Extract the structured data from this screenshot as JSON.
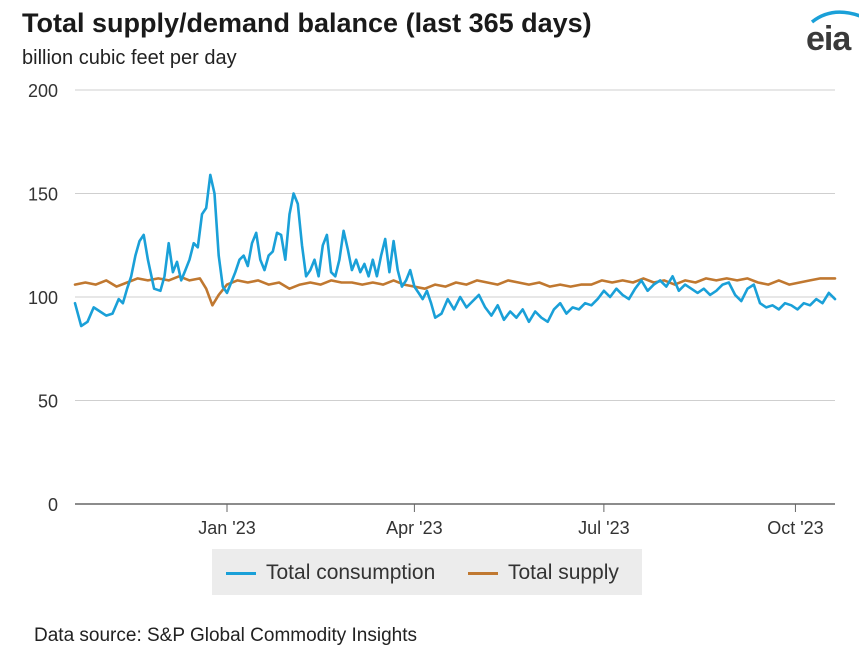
{
  "header": {
    "title": "Total supply/demand balance (last 365 days)",
    "subtitle": "billion cubic feet per day",
    "logo_text": "eia"
  },
  "footer": {
    "source": "Data source: S&P Global Commodity Insights"
  },
  "colors": {
    "consumption": "#1aa0d8",
    "supply": "#c07830",
    "grid": "#cfcfcf",
    "axis": "#666666"
  },
  "chart_data": {
    "type": "line",
    "title": "Total supply/demand balance (last 365 days)",
    "ylabel": "billion cubic feet per day",
    "ylim": [
      0,
      200
    ],
    "yticks": [
      0,
      50,
      100,
      150,
      200
    ],
    "xlim": [
      "2022-10-20",
      "2023-10-20"
    ],
    "xticks": [
      {
        "date": "2023-01-01",
        "label": "Jan '23"
      },
      {
        "date": "2023-04-01",
        "label": "Apr '23"
      },
      {
        "date": "2023-07-01",
        "label": "Jul '23"
      },
      {
        "date": "2023-10-01",
        "label": "Oct '23"
      }
    ],
    "grid": true,
    "legend": "bottom",
    "series": [
      {
        "name": "Total consumption",
        "points": [
          [
            "2022-10-20",
            97
          ],
          [
            "2022-10-23",
            86
          ],
          [
            "2022-10-26",
            88
          ],
          [
            "2022-10-29",
            95
          ],
          [
            "2022-11-01",
            93
          ],
          [
            "2022-11-04",
            91
          ],
          [
            "2022-11-07",
            92
          ],
          [
            "2022-11-10",
            99
          ],
          [
            "2022-11-12",
            97
          ],
          [
            "2022-11-14",
            104
          ],
          [
            "2022-11-16",
            110
          ],
          [
            "2022-11-18",
            120
          ],
          [
            "2022-11-20",
            127
          ],
          [
            "2022-11-22",
            130
          ],
          [
            "2022-11-24",
            118
          ],
          [
            "2022-11-27",
            104
          ],
          [
            "2022-11-30",
            103
          ],
          [
            "2022-12-02",
            110
          ],
          [
            "2022-12-04",
            126
          ],
          [
            "2022-12-06",
            112
          ],
          [
            "2022-12-08",
            117
          ],
          [
            "2022-12-10",
            108
          ],
          [
            "2022-12-12",
            113
          ],
          [
            "2022-12-14",
            118
          ],
          [
            "2022-12-16",
            126
          ],
          [
            "2022-12-18",
            124
          ],
          [
            "2022-12-20",
            140
          ],
          [
            "2022-12-22",
            143
          ],
          [
            "2022-12-24",
            159
          ],
          [
            "2022-12-26",
            150
          ],
          [
            "2022-12-28",
            120
          ],
          [
            "2022-12-30",
            105
          ],
          [
            "2023-01-01",
            102
          ],
          [
            "2023-01-03",
            107
          ],
          [
            "2023-01-05",
            112
          ],
          [
            "2023-01-07",
            118
          ],
          [
            "2023-01-09",
            120
          ],
          [
            "2023-01-11",
            115
          ],
          [
            "2023-01-13",
            126
          ],
          [
            "2023-01-15",
            131
          ],
          [
            "2023-01-17",
            118
          ],
          [
            "2023-01-19",
            113
          ],
          [
            "2023-01-21",
            120
          ],
          [
            "2023-01-23",
            122
          ],
          [
            "2023-01-25",
            131
          ],
          [
            "2023-01-27",
            130
          ],
          [
            "2023-01-29",
            118
          ],
          [
            "2023-01-31",
            140
          ],
          [
            "2023-02-02",
            150
          ],
          [
            "2023-02-04",
            145
          ],
          [
            "2023-02-06",
            125
          ],
          [
            "2023-02-08",
            110
          ],
          [
            "2023-02-10",
            113
          ],
          [
            "2023-02-12",
            118
          ],
          [
            "2023-02-14",
            110
          ],
          [
            "2023-02-16",
            125
          ],
          [
            "2023-02-18",
            130
          ],
          [
            "2023-02-20",
            112
          ],
          [
            "2023-02-22",
            110
          ],
          [
            "2023-02-24",
            118
          ],
          [
            "2023-02-26",
            132
          ],
          [
            "2023-02-28",
            123
          ],
          [
            "2023-03-02",
            113
          ],
          [
            "2023-03-04",
            118
          ],
          [
            "2023-03-06",
            112
          ],
          [
            "2023-03-08",
            116
          ],
          [
            "2023-03-10",
            110
          ],
          [
            "2023-03-12",
            118
          ],
          [
            "2023-03-14",
            110
          ],
          [
            "2023-03-16",
            120
          ],
          [
            "2023-03-18",
            128
          ],
          [
            "2023-03-20",
            112
          ],
          [
            "2023-03-22",
            127
          ],
          [
            "2023-03-24",
            113
          ],
          [
            "2023-03-26",
            105
          ],
          [
            "2023-03-28",
            108
          ],
          [
            "2023-03-30",
            113
          ],
          [
            "2023-04-01",
            105
          ],
          [
            "2023-04-03",
            102
          ],
          [
            "2023-04-05",
            99
          ],
          [
            "2023-04-07",
            103
          ],
          [
            "2023-04-09",
            97
          ],
          [
            "2023-04-11",
            90
          ],
          [
            "2023-04-14",
            92
          ],
          [
            "2023-04-17",
            99
          ],
          [
            "2023-04-20",
            94
          ],
          [
            "2023-04-23",
            100
          ],
          [
            "2023-04-26",
            95
          ],
          [
            "2023-04-29",
            98
          ],
          [
            "2023-05-02",
            101
          ],
          [
            "2023-05-05",
            95
          ],
          [
            "2023-05-08",
            91
          ],
          [
            "2023-05-11",
            96
          ],
          [
            "2023-05-14",
            89
          ],
          [
            "2023-05-17",
            93
          ],
          [
            "2023-05-20",
            90
          ],
          [
            "2023-05-23",
            94
          ],
          [
            "2023-05-26",
            88
          ],
          [
            "2023-05-29",
            93
          ],
          [
            "2023-06-01",
            90
          ],
          [
            "2023-06-04",
            88
          ],
          [
            "2023-06-07",
            94
          ],
          [
            "2023-06-10",
            97
          ],
          [
            "2023-06-13",
            92
          ],
          [
            "2023-06-16",
            95
          ],
          [
            "2023-06-19",
            94
          ],
          [
            "2023-06-22",
            97
          ],
          [
            "2023-06-25",
            96
          ],
          [
            "2023-06-28",
            99
          ],
          [
            "2023-07-01",
            103
          ],
          [
            "2023-07-04",
            100
          ],
          [
            "2023-07-07",
            104
          ],
          [
            "2023-07-10",
            101
          ],
          [
            "2023-07-13",
            99
          ],
          [
            "2023-07-16",
            104
          ],
          [
            "2023-07-19",
            108
          ],
          [
            "2023-07-22",
            103
          ],
          [
            "2023-07-25",
            106
          ],
          [
            "2023-07-28",
            108
          ],
          [
            "2023-07-31",
            105
          ],
          [
            "2023-08-03",
            110
          ],
          [
            "2023-08-06",
            103
          ],
          [
            "2023-08-09",
            106
          ],
          [
            "2023-08-12",
            104
          ],
          [
            "2023-08-15",
            102
          ],
          [
            "2023-08-18",
            104
          ],
          [
            "2023-08-21",
            101
          ],
          [
            "2023-08-24",
            103
          ],
          [
            "2023-08-27",
            106
          ],
          [
            "2023-08-30",
            107
          ],
          [
            "2023-09-02",
            101
          ],
          [
            "2023-09-05",
            98
          ],
          [
            "2023-09-08",
            104
          ],
          [
            "2023-09-11",
            106
          ],
          [
            "2023-09-14",
            97
          ],
          [
            "2023-09-17",
            95
          ],
          [
            "2023-09-20",
            96
          ],
          [
            "2023-09-23",
            94
          ],
          [
            "2023-09-26",
            97
          ],
          [
            "2023-09-29",
            96
          ],
          [
            "2023-10-02",
            94
          ],
          [
            "2023-10-05",
            97
          ],
          [
            "2023-10-08",
            96
          ],
          [
            "2023-10-11",
            99
          ],
          [
            "2023-10-14",
            97
          ],
          [
            "2023-10-17",
            102
          ],
          [
            "2023-10-20",
            99
          ]
        ]
      },
      {
        "name": "Total supply",
        "points": [
          [
            "2022-10-20",
            106
          ],
          [
            "2022-10-25",
            107
          ],
          [
            "2022-10-30",
            106
          ],
          [
            "2022-11-04",
            108
          ],
          [
            "2022-11-09",
            105
          ],
          [
            "2022-11-14",
            107
          ],
          [
            "2022-11-19",
            109
          ],
          [
            "2022-11-24",
            108
          ],
          [
            "2022-11-29",
            109
          ],
          [
            "2022-12-04",
            108
          ],
          [
            "2022-12-09",
            110
          ],
          [
            "2022-12-14",
            108
          ],
          [
            "2022-12-19",
            109
          ],
          [
            "2022-12-22",
            104
          ],
          [
            "2022-12-25",
            96
          ],
          [
            "2022-12-28",
            101
          ],
          [
            "2023-01-01",
            106
          ],
          [
            "2023-01-06",
            108
          ],
          [
            "2023-01-11",
            107
          ],
          [
            "2023-01-16",
            108
          ],
          [
            "2023-01-21",
            106
          ],
          [
            "2023-01-26",
            107
          ],
          [
            "2023-01-31",
            104
          ],
          [
            "2023-02-05",
            106
          ],
          [
            "2023-02-10",
            107
          ],
          [
            "2023-02-15",
            106
          ],
          [
            "2023-02-20",
            108
          ],
          [
            "2023-02-25",
            107
          ],
          [
            "2023-03-02",
            107
          ],
          [
            "2023-03-07",
            106
          ],
          [
            "2023-03-12",
            107
          ],
          [
            "2023-03-17",
            106
          ],
          [
            "2023-03-22",
            108
          ],
          [
            "2023-03-27",
            106
          ],
          [
            "2023-04-01",
            105
          ],
          [
            "2023-04-06",
            104
          ],
          [
            "2023-04-11",
            106
          ],
          [
            "2023-04-16",
            105
          ],
          [
            "2023-04-21",
            107
          ],
          [
            "2023-04-26",
            106
          ],
          [
            "2023-05-01",
            108
          ],
          [
            "2023-05-06",
            107
          ],
          [
            "2023-05-11",
            106
          ],
          [
            "2023-05-16",
            108
          ],
          [
            "2023-05-21",
            107
          ],
          [
            "2023-05-26",
            106
          ],
          [
            "2023-05-31",
            107
          ],
          [
            "2023-06-05",
            105
          ],
          [
            "2023-06-10",
            106
          ],
          [
            "2023-06-15",
            105
          ],
          [
            "2023-06-20",
            106
          ],
          [
            "2023-06-25",
            106
          ],
          [
            "2023-06-30",
            108
          ],
          [
            "2023-07-05",
            107
          ],
          [
            "2023-07-10",
            108
          ],
          [
            "2023-07-15",
            107
          ],
          [
            "2023-07-20",
            109
          ],
          [
            "2023-07-25",
            107
          ],
          [
            "2023-07-30",
            108
          ],
          [
            "2023-08-04",
            106
          ],
          [
            "2023-08-09",
            108
          ],
          [
            "2023-08-14",
            107
          ],
          [
            "2023-08-19",
            109
          ],
          [
            "2023-08-24",
            108
          ],
          [
            "2023-08-29",
            109
          ],
          [
            "2023-09-03",
            108
          ],
          [
            "2023-09-08",
            109
          ],
          [
            "2023-09-13",
            107
          ],
          [
            "2023-09-18",
            106
          ],
          [
            "2023-09-23",
            108
          ],
          [
            "2023-09-28",
            106
          ],
          [
            "2023-10-03",
            107
          ],
          [
            "2023-10-08",
            108
          ],
          [
            "2023-10-13",
            109
          ],
          [
            "2023-10-20",
            109
          ]
        ]
      }
    ]
  }
}
